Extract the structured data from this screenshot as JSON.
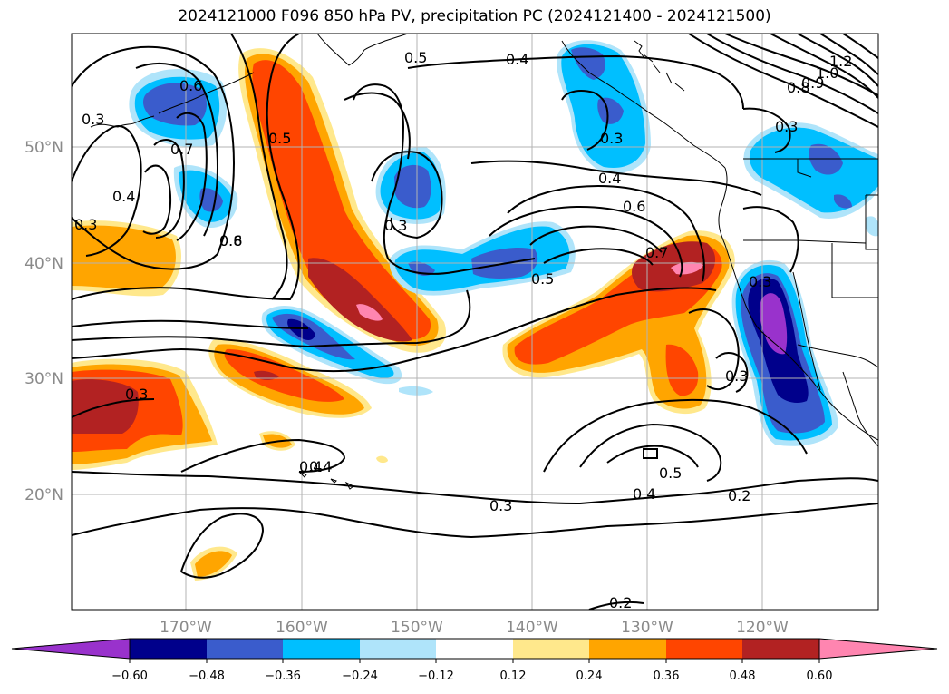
{
  "title": "2024121000 F096 850 hPa PV, precipitation PC (2024121400 - 2024121500)",
  "latitude_labels": [
    "50°N",
    "40°N",
    "30°N",
    "20°N"
  ],
  "longitude_labels": [
    "170°W",
    "160°W",
    "150°W",
    "140°W",
    "130°W",
    "120°W"
  ],
  "contour_labels": [
    "0.5",
    "0.4",
    "1.2",
    "1.0",
    "0.9",
    "0.8",
    "0.6",
    "0.3",
    "0.7",
    "0.5",
    "0.6",
    "0.3",
    "0.8",
    "0.3",
    "0.4",
    "0.3",
    "0.5",
    "0.3",
    "0.4",
    "0.6",
    "0.7",
    "0.5",
    "0.3",
    "0.4",
    "0.3",
    "0.5",
    "0.4",
    "0.2",
    "0.4",
    "0.3",
    "0.2",
    "0.3"
  ],
  "colorbar": {
    "ticks": [
      "−0.60",
      "−0.48",
      "−0.36",
      "−0.24",
      "−0.12",
      "0.12",
      "0.24",
      "0.36",
      "0.48",
      "0.60"
    ],
    "colors": [
      "#9932cc",
      "#00008b",
      "#3a5ccc",
      "#00bfff",
      "#afe4fa",
      "#ffffff",
      "#ffe88c",
      "#ffa500",
      "#ff4500",
      "#b22222",
      "#ff85b0"
    ]
  },
  "colors": {
    "neg_strong": "#9932cc",
    "neg_dark": "#00008b",
    "neg_mid": "#3a5ccc",
    "neg_light": "#00bfff",
    "neg_pale": "#afe4fa",
    "pos_pale": "#ffe88c",
    "pos_light": "#ffa500",
    "pos_mid": "#ff4500",
    "pos_dark": "#b22222",
    "pos_strong": "#ff85b0",
    "grid": "#b3b3b3",
    "contour": "#000000",
    "coast": "#000000"
  }
}
